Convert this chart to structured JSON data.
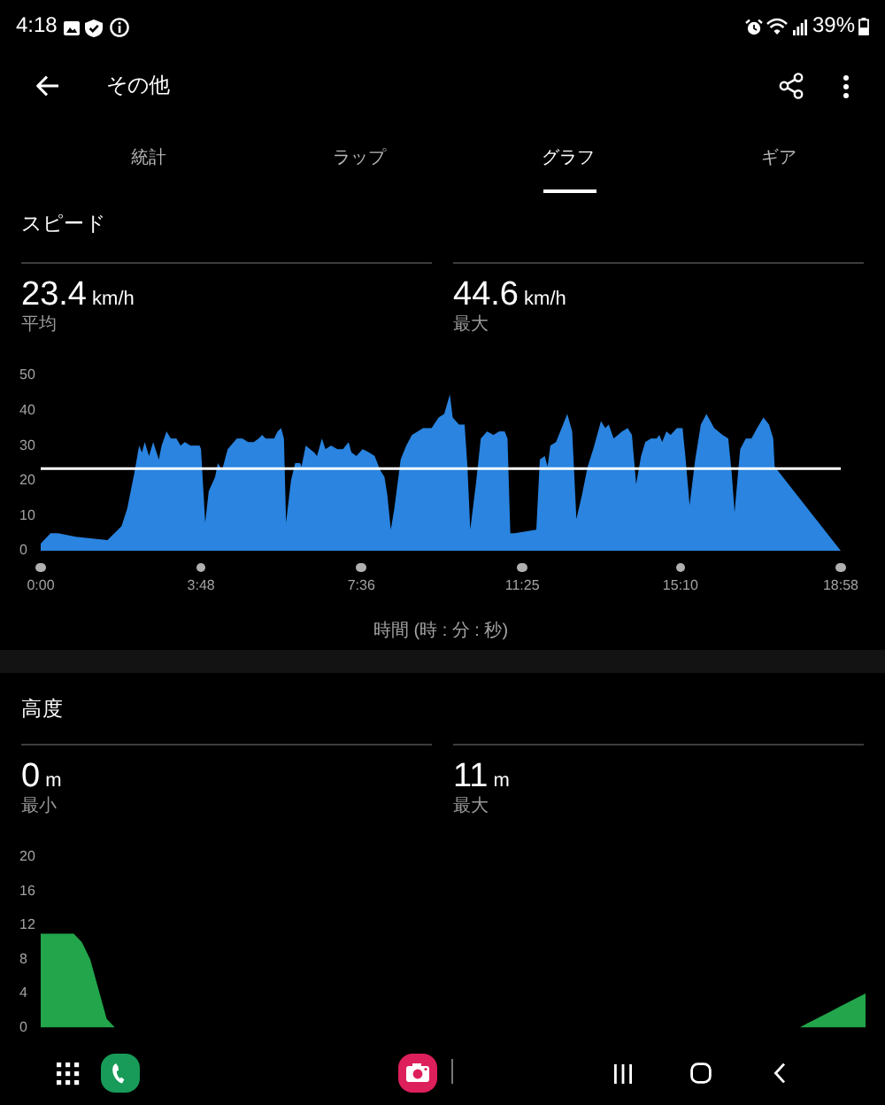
{
  "chart_data": [
    {
      "type": "area",
      "title": "スピード",
      "xlabel": "時間 (時 : 分 : 秒)",
      "annotations": [
        "4:18",
        "39%",
        "その他",
        "統計",
        "ラップ",
        "グラフ",
        "ギア",
        "23.4 km/h",
        "平均",
        "44.6 km/h",
        "最大"
      ],
      "x": [
        0,
        14,
        25,
        50,
        95,
        115,
        123,
        133,
        140,
        144,
        148,
        154,
        160,
        168,
        172,
        179,
        185,
        193,
        199,
        205,
        213,
        226,
        228,
        234,
        239,
        248,
        252,
        258,
        266,
        279,
        287,
        295,
        303,
        310,
        315,
        320,
        326,
        332,
        337,
        342,
        346,
        349,
        356,
        362,
        369,
        371,
        377,
        389,
        393,
        400,
        405,
        413,
        422,
        430,
        438,
        442,
        449,
        458,
        467,
        475,
        483,
        489,
        493,
        498,
        503,
        512,
        520,
        528,
        544,
        556,
        566,
        574,
        582,
        586,
        595,
        603,
        607,
        611,
        619,
        626,
        635,
        644,
        652,
        660,
        664,
        668,
        674,
        705,
        710,
        717,
        721,
        725,
        733,
        741,
        749,
        756,
        762,
        770,
        778,
        786,
        797,
        803,
        808,
        815,
        827,
        835,
        841,
        847,
        854,
        860,
        868,
        876,
        880,
        884,
        890,
        896,
        905,
        913,
        917,
        923,
        931,
        939,
        947,
        958,
        970,
        978,
        983,
        987,
        995,
        1003,
        1011,
        1019,
        1028,
        1036,
        1042,
        1044,
        1138
      ],
      "values": [
        2,
        5,
        5,
        4,
        3,
        7,
        12,
        22,
        30,
        28,
        31,
        27,
        31,
        26,
        30,
        34,
        32,
        32,
        30,
        31,
        30,
        30,
        29,
        8,
        17,
        21,
        25,
        23,
        29,
        32,
        32,
        31,
        31,
        32,
        33,
        32,
        32,
        32,
        34,
        35,
        32,
        8,
        20,
        25,
        25,
        24,
        30,
        28,
        27,
        32,
        29,
        30,
        29,
        29,
        31,
        28,
        27,
        29,
        28,
        27,
        23,
        21,
        16,
        6,
        12,
        26,
        30,
        33,
        35,
        35,
        38,
        39,
        44.6,
        38,
        36,
        36,
        24,
        6,
        19,
        32,
        34,
        33,
        34,
        34,
        32,
        5,
        5,
        6,
        26,
        27,
        24,
        30,
        31,
        35,
        39,
        34,
        9,
        16,
        24,
        29,
        37,
        35,
        36,
        32,
        34,
        35,
        33,
        19,
        27,
        31,
        32,
        32,
        33,
        31,
        34,
        33,
        35,
        35,
        27,
        13,
        26,
        36,
        39,
        35,
        33,
        32,
        22,
        11,
        29,
        32,
        32,
        35,
        38,
        36,
        32,
        24,
        0
      ],
      "color": "#2a84e0",
      "xlim": [
        0,
        1138
      ],
      "xticks": [
        {
          "value": 0,
          "label": "0:00"
        },
        {
          "value": 228,
          "label": "3:48"
        },
        {
          "value": 456,
          "label": "7:36"
        },
        {
          "value": 685,
          "label": "11:25"
        },
        {
          "value": 910,
          "label": "15:10"
        },
        {
          "value": 1138,
          "label": "18:58"
        }
      ],
      "ylim": [
        0,
        50
      ],
      "yticks": [
        0,
        10,
        20,
        30,
        40,
        50
      ],
      "ref_lines": [
        {
          "axis": "y",
          "value": 23.4,
          "color": "#ffffff"
        }
      ],
      "grid": false,
      "legend": false,
      "marker": "none"
    },
    {
      "type": "area",
      "title": "高度",
      "annotations": [
        "0 m",
        "最小",
        "11 m",
        "最大"
      ],
      "categories": [
        null,
        null,
        null,
        null,
        null,
        null,
        null,
        null,
        null,
        null,
        null,
        null,
        null,
        null,
        null,
        null,
        null,
        null,
        null,
        null,
        null,
        null,
        null,
        null,
        null,
        null,
        null,
        null,
        null,
        null,
        null,
        null,
        null,
        null,
        null,
        null,
        null,
        null,
        null,
        null,
        null,
        null,
        null,
        null,
        null,
        null,
        null,
        null,
        null,
        null,
        null,
        null,
        null,
        null,
        null,
        null,
        null,
        null,
        null,
        null,
        null,
        null,
        null,
        null,
        null,
        null,
        null,
        null,
        null,
        null,
        null,
        null,
        null,
        null,
        null,
        null,
        null,
        null,
        null,
        null,
        null,
        null,
        null,
        null,
        null,
        null,
        null,
        null,
        null,
        null,
        null,
        null,
        null,
        null,
        null,
        null,
        null,
        null,
        null,
        null,
        null
      ],
      "values": [
        11,
        11,
        11,
        11,
        11,
        10,
        8,
        4.5,
        1,
        0,
        0,
        0,
        0,
        0,
        0,
        0,
        0,
        0,
        0,
        0,
        0,
        0,
        0,
        0,
        0,
        0,
        0,
        0,
        0,
        0,
        0,
        0,
        0,
        0,
        0,
        0,
        0,
        0,
        0,
        0,
        0,
        0,
        0,
        0,
        0,
        0,
        0,
        0,
        0,
        0,
        0,
        0,
        0,
        0,
        0,
        0,
        0,
        0,
        0,
        0,
        0,
        0,
        0,
        0,
        0,
        0,
        0,
        0,
        0,
        0,
        0,
        0,
        0,
        0,
        0,
        0,
        0,
        0,
        0,
        0,
        0,
        0,
        0,
        0,
        0,
        0,
        0,
        0,
        0,
        0,
        0,
        0,
        0,
        0.5,
        1,
        1.5,
        2,
        2.5,
        3,
        3.5,
        4
      ],
      "color": "#22a54b",
      "ylim": [
        0,
        20
      ],
      "yticks": [
        0,
        4,
        8,
        12,
        16,
        20
      ],
      "tick_labels": "y",
      "grid": false,
      "legend": false,
      "marker": "none"
    }
  ]
}
